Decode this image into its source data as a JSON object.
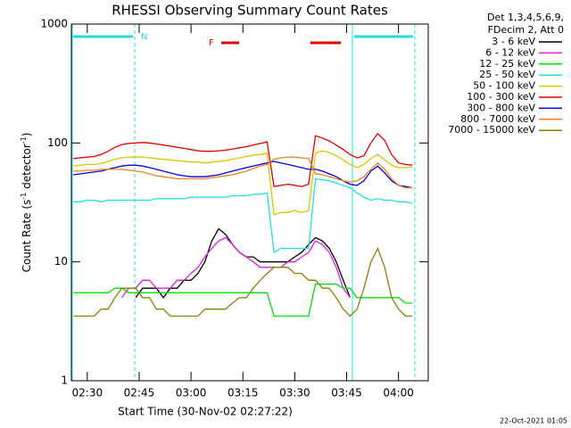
{
  "chart_data": {
    "type": "line",
    "title": "RHESSI Observing Summary Count Rates",
    "xlabel": "Start Time (30-Nov-02 02:27:22)",
    "ylabel": [
      "Count Rate (s",
      "-1",
      " detector",
      "-1",
      ")"
    ],
    "legend_header": [
      "Det 1,3,4,5,6,9,",
      "FDecim 2, Att 0"
    ],
    "footer": "22-Oct-2021 01:05",
    "annotations": {
      "night": "N",
      "flare": "F"
    },
    "log_y": true,
    "xlim": [
      145.4,
      248.6
    ],
    "ylim": [
      1,
      1000
    ],
    "xticks": [
      {
        "value": 150,
        "label": "02:30"
      },
      {
        "value": 165,
        "label": "02:45"
      },
      {
        "value": 180,
        "label": "03:00"
      },
      {
        "value": 195,
        "label": "03:15"
      },
      {
        "value": 210,
        "label": "03:30"
      },
      {
        "value": 225,
        "label": "03:45"
      },
      {
        "value": 240,
        "label": "04:00"
      }
    ],
    "yticks": [
      1,
      10,
      100,
      1000
    ],
    "x": [
      146,
      148,
      150,
      152,
      154,
      156,
      158,
      160,
      162,
      164,
      166,
      168,
      170,
      172,
      174,
      176,
      178,
      180,
      182,
      184,
      186,
      188,
      190,
      192,
      194,
      196,
      198,
      200,
      202,
      204,
      206,
      208,
      210,
      212,
      214,
      216,
      218,
      220,
      222,
      224,
      226,
      228,
      230,
      232,
      234,
      236,
      238,
      240,
      242,
      244
    ],
    "series": [
      {
        "name": "3 - 6 keV",
        "color": "#000000",
        "values": [
          null,
          null,
          null,
          null,
          null,
          null,
          null,
          null,
          null,
          5,
          6,
          6,
          6,
          5,
          6,
          6,
          7,
          7,
          8,
          10,
          15,
          19,
          17,
          14,
          12,
          11,
          11,
          10,
          10,
          10,
          10,
          10,
          11,
          12,
          14,
          16,
          15,
          13,
          10,
          7,
          5,
          null,
          null,
          null,
          null,
          null,
          null,
          null,
          null,
          null
        ]
      },
      {
        "name": "6 - 12 keV",
        "color": "#e020e0",
        "values": [
          null,
          null,
          null,
          null,
          null,
          null,
          null,
          5,
          6,
          6,
          7,
          7,
          6,
          6,
          6,
          7,
          7,
          8,
          9,
          11,
          13,
          15,
          16,
          14,
          12,
          11,
          10,
          9,
          9,
          9,
          9,
          10,
          10,
          11,
          12,
          15,
          14,
          12,
          9,
          6,
          5,
          null,
          null,
          null,
          null,
          null,
          null,
          null,
          null,
          null
        ]
      },
      {
        "name": "12 - 25 keV",
        "color": "#00e000",
        "values": [
          5.5,
          5.5,
          5.5,
          5.5,
          5.5,
          5.5,
          6,
          6,
          5.5,
          5.5,
          5.5,
          5.5,
          5.5,
          5.5,
          5.5,
          5.5,
          5.5,
          5.5,
          5.5,
          5.5,
          5.5,
          5.5,
          5.5,
          5.5,
          5.5,
          5.5,
          5.5,
          5.5,
          5.5,
          3.5,
          3.5,
          3.5,
          3.5,
          3.5,
          3.5,
          6.5,
          6.5,
          6.5,
          6.5,
          6,
          6,
          5,
          5,
          5,
          5,
          5,
          5,
          5,
          4.5,
          4.5
        ]
      },
      {
        "name": "25 - 50 keV",
        "color": "#20e0e0",
        "values": [
          32,
          32,
          33,
          33,
          32,
          33,
          33,
          33,
          33,
          33,
          33,
          33,
          34,
          34,
          34,
          34,
          34,
          35,
          35,
          35,
          35,
          35,
          35,
          36,
          36,
          36,
          37,
          37,
          38,
          12,
          13,
          13,
          13,
          13,
          13,
          50,
          49,
          48,
          46,
          44,
          42,
          38,
          35,
          33,
          34,
          33,
          33,
          32,
          32,
          31
        ]
      },
      {
        "name": "50 - 100 keV",
        "color": "#d8c800",
        "values": [
          64,
          65,
          66,
          66,
          67,
          70,
          73,
          75,
          76,
          76,
          76,
          75,
          74,
          73,
          72,
          71,
          70,
          69,
          69,
          68,
          69,
          70,
          71,
          73,
          75,
          77,
          79,
          80,
          82,
          25,
          26,
          26,
          27,
          26,
          27,
          82,
          86,
          83,
          78,
          72,
          66,
          62,
          66,
          74,
          80,
          72,
          65,
          62,
          62,
          63
        ]
      },
      {
        "name": "100 - 300 keV",
        "color": "#e00000",
        "values": [
          74,
          75,
          76,
          77,
          80,
          85,
          92,
          97,
          99,
          100,
          101,
          100,
          98,
          96,
          94,
          92,
          90,
          88,
          86,
          85,
          85,
          86,
          87,
          89,
          91,
          93,
          96,
          99,
          102,
          43,
          44,
          45,
          44,
          43,
          45,
          115,
          110,
          104,
          96,
          88,
          80,
          75,
          78,
          100,
          120,
          105,
          80,
          68,
          66,
          65
        ]
      },
      {
        "name": "300 - 800 keV",
        "color": "#0000e0",
        "values": [
          54,
          55,
          56,
          57,
          58,
          60,
          62,
          64,
          65,
          65,
          64,
          62,
          60,
          58,
          56,
          54,
          53,
          52,
          52,
          52,
          53,
          54,
          56,
          58,
          60,
          62,
          64,
          66,
          68,
          70,
          68,
          66,
          64,
          62,
          60,
          60,
          58,
          55,
          52,
          48,
          45,
          44,
          48,
          58,
          64,
          56,
          48,
          44,
          43,
          42
        ]
      },
      {
        "name": "800 - 7000 keV",
        "color": "#f08020",
        "values": [
          58,
          58,
          59,
          59,
          60,
          60,
          60,
          60,
          59,
          58,
          57,
          55,
          53,
          52,
          51,
          50,
          50,
          50,
          50,
          50,
          51,
          52,
          53,
          54,
          56,
          58,
          61,
          64,
          66,
          73,
          75,
          76,
          76,
          75,
          74,
          55,
          54,
          52,
          50,
          48,
          47,
          48,
          52,
          60,
          68,
          60,
          50,
          44,
          42,
          42
        ]
      },
      {
        "name": "7000 - 15000 keV",
        "color": "#8c8000",
        "values": [
          3.5,
          3.5,
          3.5,
          3.5,
          4,
          4,
          5,
          6,
          6,
          6,
          5,
          5,
          4,
          4,
          3.5,
          3.5,
          3.5,
          3.5,
          3.5,
          4,
          4,
          4,
          4,
          4.5,
          5,
          5,
          6,
          7,
          8,
          9,
          9,
          9,
          8,
          8,
          7,
          7,
          6,
          6,
          5,
          4,
          3.5,
          4,
          6,
          10,
          13,
          9,
          5,
          4,
          3.5,
          3.5
        ]
      }
    ]
  }
}
